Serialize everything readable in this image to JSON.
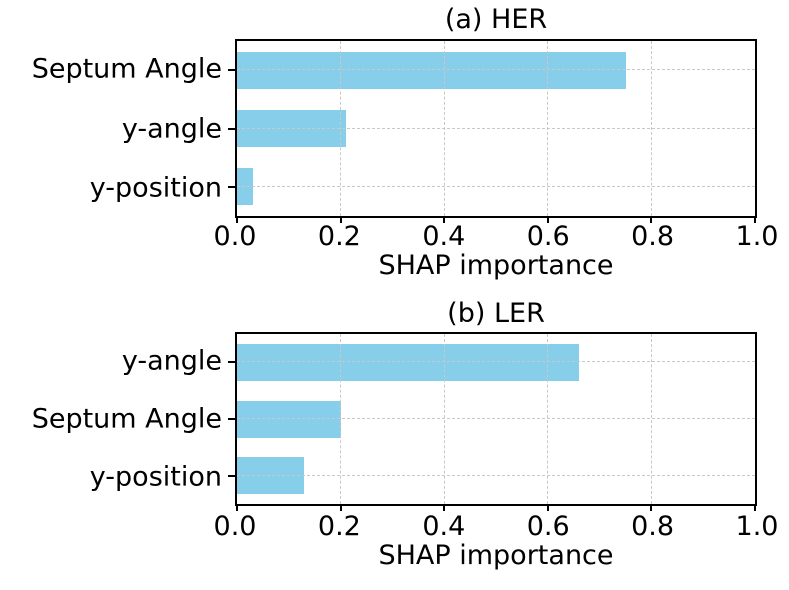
{
  "colors": {
    "bar": "#87CEEB",
    "grid": "#c8c8c8",
    "axis": "#000000",
    "text": "#000000",
    "background": "#ffffff"
  },
  "chart_data": [
    {
      "type": "bar",
      "orientation": "horizontal",
      "title": "(a) HER",
      "xlabel": "SHAP importance",
      "categories": [
        "Septum Angle",
        "y-angle",
        "y-position"
      ],
      "values": [
        0.75,
        0.21,
        0.03
      ],
      "xlim": [
        0,
        1
      ],
      "xticks": [
        "0.0",
        "0.2",
        "0.4",
        "0.6",
        "0.8",
        "1.0"
      ],
      "xtick_values": [
        0,
        0.2,
        0.4,
        0.6,
        0.8,
        1.0
      ],
      "grid": "dashed both axes, drawn above bars",
      "legend": "none",
      "bar_color": "#87CEEB"
    },
    {
      "type": "bar",
      "orientation": "horizontal",
      "title": "(b) LER",
      "xlabel": "SHAP importance",
      "categories": [
        "y-angle",
        "Septum Angle",
        "y-position"
      ],
      "values": [
        0.66,
        0.2,
        0.13
      ],
      "xlim": [
        0,
        1
      ],
      "xticks": [
        "0.0",
        "0.2",
        "0.4",
        "0.6",
        "0.8",
        "1.0"
      ],
      "xtick_values": [
        0,
        0.2,
        0.4,
        0.6,
        0.8,
        1.0
      ],
      "grid": "dashed both axes, drawn above bars",
      "legend": "none",
      "bar_color": "#87CEEB"
    }
  ]
}
